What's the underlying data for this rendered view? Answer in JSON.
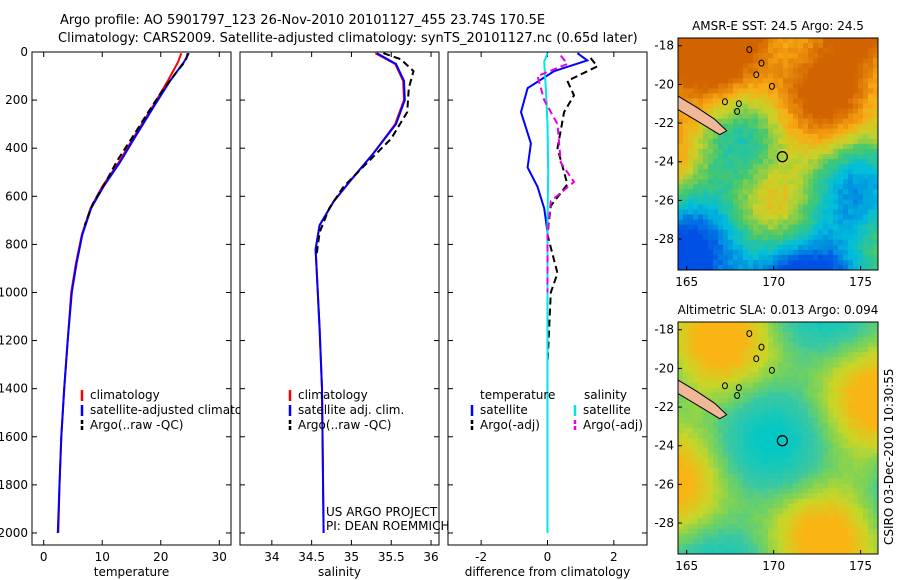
{
  "title_line1": "Argo profile: AO 5901797_123 26-Nov-2010 20101127_455 23.74S 170.5E",
  "title_line2": "Climatology: CARS2009. Satellite-adjusted climatology: synTS_20101127.nc (0.65d later)",
  "footer_project": "US ARGO PROJECT",
  "footer_pi": "PI: DEAN ROEMMICH",
  "side_note": "CSIRO 03-Dec-2010 10:30:55",
  "colors": {
    "climatology": "#ff0000",
    "satellite": "#0000ff",
    "argo": "#000000",
    "sal_satellite": "#00e5e5",
    "sal_argo": "#e600e6"
  },
  "chart_data": [
    {
      "type": "line",
      "xlabel": "temperature",
      "xlim": [
        -2,
        32
      ],
      "xticks": [
        0,
        10,
        20,
        30
      ],
      "ylim": [
        2050,
        0
      ],
      "yticks": [
        0,
        200,
        400,
        600,
        800,
        1000,
        1200,
        1400,
        1600,
        1800,
        2000
      ],
      "legend": [
        "climatology",
        "satellite-adjusted climatology",
        "Argo(..raw -QC)"
      ],
      "series": [
        {
          "name": "climatology",
          "color": "#ff0000",
          "dash": "",
          "points": [
            [
              23.5,
              5
            ],
            [
              23.0,
              40
            ],
            [
              21.2,
              120
            ],
            [
              18.8,
              220
            ],
            [
              15.5,
              350
            ],
            [
              12.8,
              460
            ],
            [
              10.0,
              560
            ],
            [
              8.0,
              650
            ],
            [
              6.5,
              760
            ],
            [
              5.5,
              880
            ],
            [
              4.7,
              1000
            ],
            [
              4.1,
              1200
            ],
            [
              3.5,
              1400
            ],
            [
              3.0,
              1600
            ],
            [
              2.7,
              1800
            ],
            [
              2.5,
              2000
            ]
          ]
        },
        {
          "name": "satellite-adjusted climatology",
          "color": "#0000ff",
          "dash": "",
          "points": [
            [
              24.8,
              5
            ],
            [
              24.0,
              40
            ],
            [
              21.6,
              120
            ],
            [
              19.0,
              220
            ],
            [
              15.7,
              350
            ],
            [
              13.0,
              460
            ],
            [
              10.2,
              560
            ],
            [
              8.1,
              650
            ],
            [
              6.6,
              760
            ],
            [
              5.6,
              880
            ],
            [
              4.8,
              1000
            ],
            [
              4.1,
              1200
            ],
            [
              3.5,
              1400
            ],
            [
              3.0,
              1600
            ],
            [
              2.7,
              1800
            ],
            [
              2.4,
              2000
            ]
          ]
        },
        {
          "name": "Argo(..raw -QC)",
          "color": "#000000",
          "dash": "7,4",
          "points": [
            [
              24.6,
              5
            ],
            [
              24.3,
              35
            ],
            [
              22.5,
              90
            ],
            [
              20.0,
              170
            ],
            [
              17.6,
              260
            ],
            [
              15.0,
              360
            ],
            [
              12.6,
              450
            ],
            [
              10.6,
              540
            ],
            [
              8.4,
              630
            ],
            [
              7.0,
              720
            ]
          ]
        }
      ]
    },
    {
      "type": "line",
      "xlabel": "salinity",
      "xlim": [
        33.6,
        36.1
      ],
      "xticks": [
        34,
        34.5,
        35,
        35.5,
        36
      ],
      "ylim": [
        2050,
        0
      ],
      "yticks": [],
      "legend": [
        "climatology",
        "satellite adj. clim.",
        "Argo(..raw -QC)"
      ],
      "series": [
        {
          "name": "climatology",
          "color": "#ff0000",
          "dash": "",
          "points": [
            [
              35.3,
              5
            ],
            [
              35.55,
              50
            ],
            [
              35.65,
              120
            ],
            [
              35.66,
              200
            ],
            [
              35.55,
              300
            ],
            [
              35.28,
              420
            ],
            [
              35.0,
              530
            ],
            [
              34.78,
              620
            ],
            [
              34.6,
              720
            ],
            [
              34.55,
              820
            ],
            [
              34.57,
              950
            ],
            [
              34.6,
              1150
            ],
            [
              34.63,
              1400
            ],
            [
              34.64,
              1700
            ],
            [
              34.65,
              2000
            ]
          ]
        },
        {
          "name": "satellite adj. clim.",
          "color": "#0000ff",
          "dash": "",
          "points": [
            [
              35.32,
              5
            ],
            [
              35.56,
              50
            ],
            [
              35.66,
              120
            ],
            [
              35.67,
              200
            ],
            [
              35.56,
              300
            ],
            [
              35.28,
              420
            ],
            [
              35.0,
              530
            ],
            [
              34.78,
              620
            ],
            [
              34.6,
              720
            ],
            [
              34.55,
              820
            ],
            [
              34.57,
              950
            ],
            [
              34.6,
              1150
            ],
            [
              34.63,
              1400
            ],
            [
              34.64,
              1700
            ],
            [
              34.65,
              2000
            ]
          ]
        },
        {
          "name": "Argo(..raw -QC)",
          "color": "#000000",
          "dash": "7,4",
          "points": [
            [
              35.4,
              5
            ],
            [
              35.62,
              30
            ],
            [
              35.78,
              80
            ],
            [
              35.72,
              150
            ],
            [
              35.7,
              250
            ],
            [
              35.5,
              360
            ],
            [
              35.2,
              460
            ],
            [
              34.9,
              560
            ],
            [
              34.72,
              650
            ],
            [
              34.6,
              750
            ],
            [
              34.56,
              850
            ]
          ]
        }
      ]
    },
    {
      "type": "line",
      "xlabel": "difference from climatology",
      "xlim": [
        -3.0,
        3.0
      ],
      "xticks": [
        -2,
        0,
        2
      ],
      "ylim": [
        2050,
        0
      ],
      "yticks": [],
      "legend": [
        "temperature",
        "satellite",
        "Argo(-adj)",
        "salinity",
        "satellite",
        "Argo(-adj)"
      ],
      "series": [
        {
          "name": "temperature satellite",
          "color": "#0000ff",
          "dash": "",
          "points": [
            [
              0.9,
              5
            ],
            [
              1.2,
              35
            ],
            [
              0.2,
              80
            ],
            [
              -0.6,
              150
            ],
            [
              -0.8,
              250
            ],
            [
              -0.5,
              380
            ],
            [
              -0.6,
              480
            ],
            [
              -0.3,
              560
            ],
            [
              -0.1,
              650
            ],
            [
              0,
              750
            ],
            [
              0,
              1000
            ],
            [
              0,
              1500
            ],
            [
              0,
              2000
            ]
          ]
        },
        {
          "name": "temperature Argo(-adj)",
          "color": "#000000",
          "dash": "7,4",
          "points": [
            [
              1.3,
              25
            ],
            [
              1.5,
              60
            ],
            [
              0.6,
              120
            ],
            [
              0.8,
              180
            ],
            [
              0.5,
              250
            ],
            [
              0.3,
              400
            ],
            [
              0.6,
              550
            ],
            [
              0.1,
              640
            ],
            [
              0,
              760
            ],
            [
              0.3,
              920
            ],
            [
              0.1,
              1000
            ],
            [
              0,
              1300
            ],
            [
              0,
              1500
            ]
          ]
        },
        {
          "name": "salinity satellite",
          "color": "#00e5e5",
          "dash": "",
          "points": [
            [
              0,
              5
            ],
            [
              -0.1,
              40
            ],
            [
              -0.05,
              150
            ],
            [
              0,
              300
            ],
            [
              0.02,
              500
            ],
            [
              0,
              700
            ],
            [
              0,
              1000
            ],
            [
              0,
              1500
            ],
            [
              0,
              2000
            ]
          ]
        },
        {
          "name": "salinity Argo(-adj)",
          "color": "#e600e6",
          "dash": "7,4",
          "points": [
            [
              0.4,
              15
            ],
            [
              0.6,
              50
            ],
            [
              -0.3,
              100
            ],
            [
              -0.1,
              200
            ],
            [
              0.3,
              300
            ],
            [
              0.4,
              460
            ],
            [
              0.8,
              540
            ],
            [
              0.1,
              620
            ],
            [
              0,
              760
            ],
            [
              0,
              1000
            ]
          ]
        }
      ]
    },
    {
      "type": "heatmap",
      "title": "AMSR-E SST: 24.5 Argo: 24.5",
      "xlim": [
        164.5,
        176
      ],
      "xticks": [
        165,
        170,
        175
      ],
      "ylim": [
        -29.6,
        -17.6
      ],
      "yticks": [
        -18,
        -20,
        -22,
        -24,
        -26,
        -28
      ],
      "marker": {
        "lon": 170.5,
        "lat": -23.74
      }
    },
    {
      "type": "heatmap",
      "title": "Altimetric SLA: 0.013 Argo: 0.094",
      "xlim": [
        164.5,
        176
      ],
      "xticks": [
        165,
        170,
        175
      ],
      "ylim": [
        -29.6,
        -17.6
      ],
      "yticks": [
        -18,
        -20,
        -22,
        -24,
        -26,
        -28
      ],
      "marker": {
        "lon": 170.5,
        "lat": -23.74
      }
    }
  ]
}
